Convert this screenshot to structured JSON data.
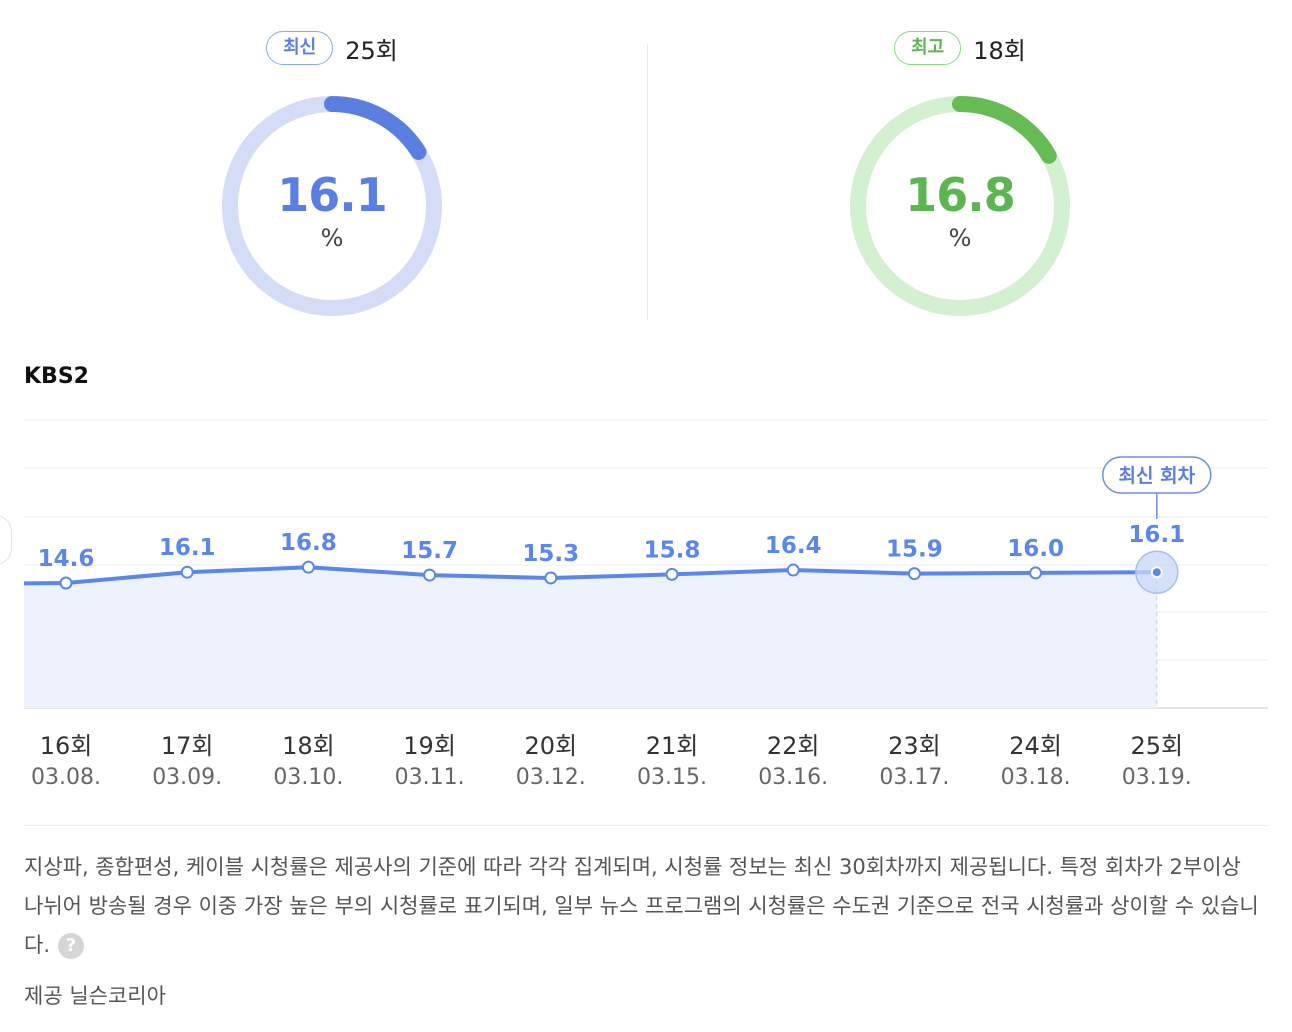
{
  "gauges": {
    "latest": {
      "badge": "최신",
      "episode": "25회",
      "value": "16.1",
      "unit": "%",
      "fraction": 0.161,
      "color": "#5b7fe0",
      "track": "#d5ddf6"
    },
    "best": {
      "badge": "최고",
      "episode": "18회",
      "value": "16.8",
      "unit": "%",
      "fraction": 0.168,
      "color": "#66bb55",
      "track": "#d3f0d0"
    }
  },
  "channel": "KBS2",
  "chart_data": {
    "type": "area",
    "series": [
      {
        "values": [
          14.6,
          16.1,
          16.8,
          15.7,
          15.3,
          15.8,
          16.4,
          15.9,
          16.0,
          16.1
        ]
      }
    ],
    "value_labels": [
      "14.6",
      "16.1",
      "16.8",
      "15.7",
      "15.3",
      "15.8",
      "16.4",
      "15.9",
      "16.0",
      "16.1"
    ],
    "categories": [
      "16회",
      "17회",
      "18회",
      "19회",
      "20회",
      "21회",
      "22회",
      "23회",
      "24회",
      "25회"
    ],
    "dates": [
      "03.08.",
      "03.09.",
      "03.10.",
      "03.11.",
      "03.12.",
      "03.15.",
      "03.16.",
      "03.17.",
      "03.18.",
      "03.19."
    ],
    "highlight_index": 9,
    "highlight_label": "최신 회차",
    "grid": true,
    "line_color": "#5b87ea",
    "fill_color": "#eef2fd"
  },
  "notice": "지상파, 종합편성, 케이블 시청률은 제공사의 기준에 따라 각각 집계되며, 시청률 정보는 최신 30회차까지 제공됩니다. 특정 회차가 2부이상 나뉘어 방송될 경우 이중 가장 높은 부의 시청률로 표기되며, 일부 뉴스 프로그램의 시청률은 수도권 기준으로 전국 시청률과 상이할 수 있습니다.",
  "help_icon": "?",
  "source": "제공 닐슨코리아"
}
